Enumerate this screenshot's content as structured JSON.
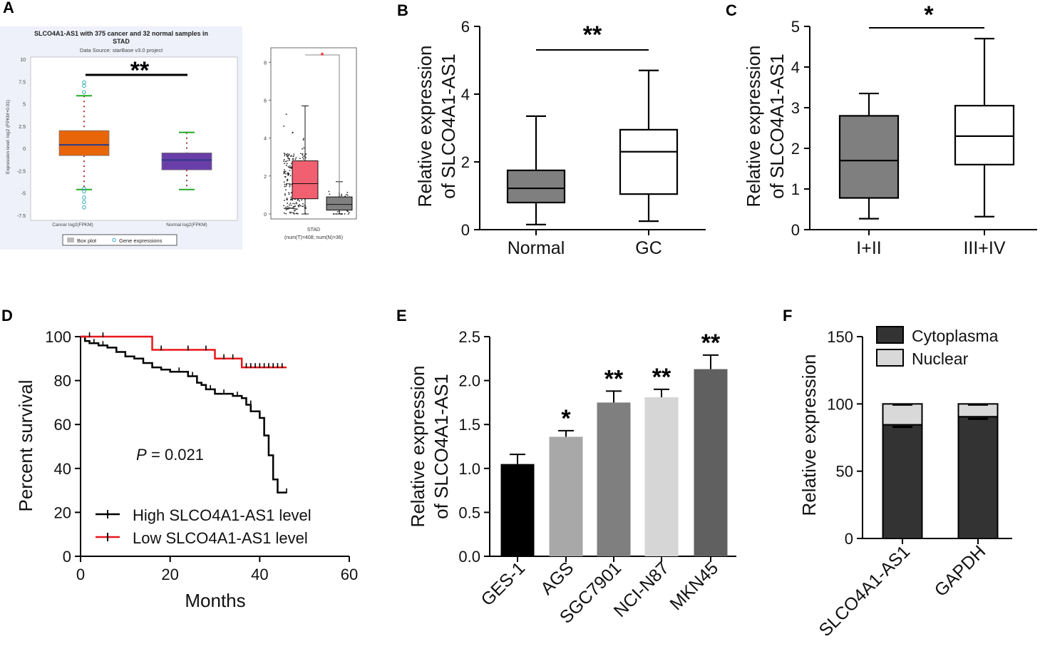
{
  "panels": {
    "A": {
      "label": "A",
      "starbase": {
        "title_line1": "SLCO4A1-AS1 with 375 cancer and 32 normal samples in",
        "title_line2": "STAD",
        "source": "Data Source: starBase v3.0 project",
        "ylabel": "Expression level: log2 (FPKM+0.01)",
        "yticks": [
          "10",
          "7.5",
          "5",
          "2.5",
          "0",
          "-2.5",
          "-5",
          "-7.5"
        ],
        "ytick_values": [
          10,
          7.5,
          5,
          2.5,
          0,
          -2.5,
          -5,
          -7.5
        ],
        "categories": [
          "Cancer log2(FPKM)",
          "Normal log2(FPKM)"
        ],
        "boxes": [
          {
            "min": -4.6,
            "q1": -0.8,
            "median": 0.4,
            "q3": 2.0,
            "max": 5.9,
            "color": "#e8650a"
          },
          {
            "min": -4.6,
            "q1": -2.4,
            "median": -1.3,
            "q3": -0.5,
            "max": 1.8,
            "color": "#6a3ea8"
          }
        ],
        "outliers": [
          7.4,
          7.0,
          6.3,
          -4.5,
          -4.8,
          -5.5,
          -6.0,
          -6.6
        ],
        "legend": [
          "Box plot",
          "Gene expressions"
        ],
        "significance": "**"
      },
      "gepia": {
        "yticks": [
          "0",
          "2",
          "4",
          "6",
          "8"
        ],
        "ytick_values": [
          0,
          2,
          4,
          6,
          8
        ],
        "xlabel_line1": "STAD",
        "xlabel_line2": "(num(T)=408; num(N)=36)",
        "boxes": [
          {
            "min": 0.0,
            "q1": 0.8,
            "median": 1.6,
            "q3": 2.8,
            "max": 5.7,
            "color": "#f06070"
          },
          {
            "min": 0.0,
            "q1": 0.2,
            "median": 0.5,
            "q3": 0.9,
            "max": 1.7,
            "color": "#808080"
          }
        ],
        "significance": "*"
      }
    },
    "B": {
      "label": "B",
      "ylabel_line1": "Relative expression",
      "ylabel_line2": "of SLCO4A1-AS1",
      "yticks": [
        "0",
        "2",
        "4",
        "6"
      ],
      "ytick_values": [
        0,
        2,
        4,
        6
      ],
      "categories": [
        "Normal",
        "GC"
      ],
      "boxes": [
        {
          "min": 0.15,
          "q1": 0.8,
          "median": 1.22,
          "q3": 1.75,
          "max": 3.35,
          "color": "#7f7f7f"
        },
        {
          "min": 0.25,
          "q1": 1.05,
          "median": 2.3,
          "q3": 2.95,
          "max": 4.7,
          "color": "#ffffff"
        }
      ],
      "significance": "**"
    },
    "C": {
      "label": "C",
      "ylabel_line1": "Relative expression",
      "ylabel_line2": "of SLCO4A1-AS1",
      "yticks": [
        "0",
        "1",
        "2",
        "3",
        "4",
        "5"
      ],
      "ytick_values": [
        0,
        1,
        2,
        3,
        4,
        5
      ],
      "categories": [
        "I+II",
        "III+IV"
      ],
      "boxes": [
        {
          "min": 0.27,
          "q1": 0.78,
          "median": 1.7,
          "q3": 2.8,
          "max": 3.35,
          "color": "#7f7f7f"
        },
        {
          "min": 0.32,
          "q1": 1.6,
          "median": 2.3,
          "q3": 3.05,
          "max": 4.7,
          "color": "#ffffff"
        }
      ],
      "significance": "*"
    },
    "D": {
      "label": "D",
      "ylabel": "Percent survival",
      "xlabel": "Months",
      "xticks": [
        "0",
        "20",
        "40",
        "60"
      ],
      "xtick_values": [
        0,
        20,
        40,
        60
      ],
      "yticks": [
        "0",
        "20",
        "40",
        "60",
        "80",
        "100"
      ],
      "ytick_values": [
        0,
        20,
        40,
        60,
        80,
        100
      ],
      "p_label": "P",
      "p_value": "= 0.021",
      "series": [
        {
          "name": "High SLCO4A1-AS1 level",
          "color": "#000000",
          "x": [
            0,
            1,
            2,
            4,
            6,
            8,
            10,
            12,
            14,
            16,
            18,
            20,
            24,
            26,
            27,
            28,
            30,
            34,
            36,
            37,
            38,
            40,
            41,
            42,
            43,
            44,
            46
          ],
          "y": [
            100,
            98,
            97,
            96,
            95,
            93,
            91,
            90,
            88,
            86,
            85,
            84,
            82,
            79,
            78,
            76,
            74,
            73,
            72,
            69,
            66,
            63,
            55,
            46,
            35,
            29,
            29
          ],
          "censor": [
            [
              3,
              97
            ],
            [
              5,
              96
            ],
            [
              22,
              84
            ],
            [
              25,
              82
            ],
            [
              29,
              76
            ],
            [
              32,
              74
            ],
            [
              35,
              73
            ],
            [
              38,
              69
            ],
            [
              46,
              29
            ]
          ]
        },
        {
          "name": "Low SLCO4A1-AS1 level",
          "color": "#e8171c",
          "x": [
            0,
            16,
            30,
            36,
            46
          ],
          "y": [
            100,
            94,
            90,
            86,
            86
          ],
          "censor": [
            [
              2,
              100
            ],
            [
              5,
              100
            ],
            [
              18,
              94
            ],
            [
              24,
              94
            ],
            [
              28,
              94
            ],
            [
              32,
              90
            ],
            [
              34,
              90
            ],
            [
              37,
              86
            ],
            [
              38,
              86
            ],
            [
              39,
              86
            ],
            [
              40,
              86
            ],
            [
              41,
              86
            ],
            [
              42,
              86
            ],
            [
              43,
              86
            ],
            [
              44,
              86
            ],
            [
              45,
              86
            ]
          ]
        }
      ]
    },
    "E": {
      "label": "E",
      "ylabel_line1": "Relative expression",
      "ylabel_line2": "of SLCO4A1-AS1",
      "yticks": [
        "0.0",
        "0.5",
        "1.0",
        "1.5",
        "2.0",
        "2.5"
      ],
      "ytick_values": [
        0,
        0.5,
        1.0,
        1.5,
        2.0,
        2.5
      ],
      "categories": [
        "GES-1",
        "AGS",
        "SGC7901",
        "NCI-N87",
        "MKN45"
      ],
      "values": [
        1.05,
        1.36,
        1.75,
        1.81,
        2.13
      ],
      "errors": [
        0.11,
        0.07,
        0.13,
        0.09,
        0.16
      ],
      "colors": [
        "#000000",
        "#a8a8a8",
        "#7f7f7f",
        "#d6d6d6",
        "#606060"
      ],
      "significance": [
        "",
        "*",
        "**",
        "**",
        "**"
      ]
    },
    "F": {
      "label": "F",
      "ylabel": "Relative expression",
      "yticks": [
        "0",
        "50",
        "100",
        "150"
      ],
      "ytick_values": [
        0,
        50,
        100,
        150
      ],
      "categories": [
        "SLCO4A1-AS1",
        "GAPDH"
      ],
      "series": [
        {
          "name": "Cytoplasma",
          "values": [
            84.5,
            90.5
          ],
          "color": "#333333"
        },
        {
          "name": "Nuclear",
          "values": [
            15.5,
            9.5
          ],
          "color": "#d9d9d9"
        }
      ]
    }
  }
}
